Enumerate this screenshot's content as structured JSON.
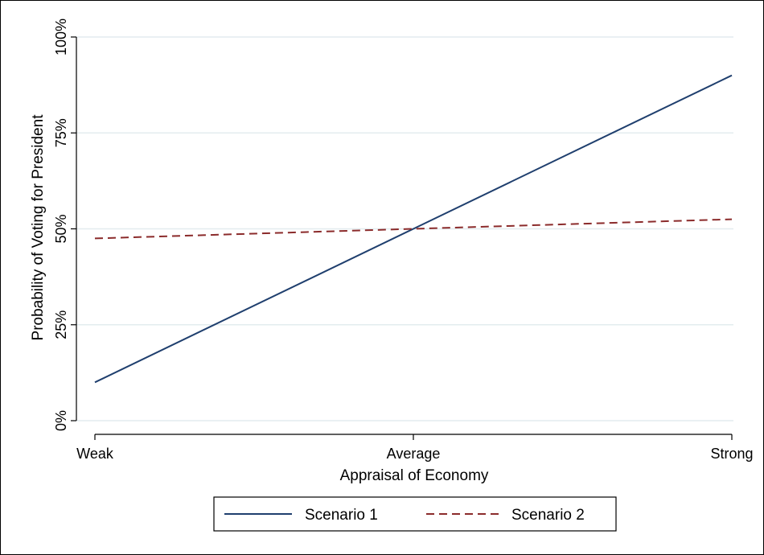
{
  "chart_data": {
    "type": "line",
    "xlabel": "Appraisal of Economy",
    "ylabel": "Probability of Voting for President",
    "categories": [
      "Weak",
      "Average",
      "Strong"
    ],
    "yticks": [
      "0%",
      "25%",
      "50%",
      "75%",
      "100%"
    ],
    "ylim": [
      0,
      1
    ],
    "grid": true,
    "legend_position": "bottom",
    "series": [
      {
        "name": "Scenario 1",
        "x": [
          0,
          1,
          2
        ],
        "values": [
          0.1,
          0.5,
          0.9
        ],
        "color": "#1f3f6e",
        "style": "solid"
      },
      {
        "name": "Scenario 2",
        "x": [
          0,
          1,
          2
        ],
        "values": [
          0.475,
          0.5,
          0.525
        ],
        "color": "#8b2b2b",
        "style": "dashed"
      }
    ]
  }
}
